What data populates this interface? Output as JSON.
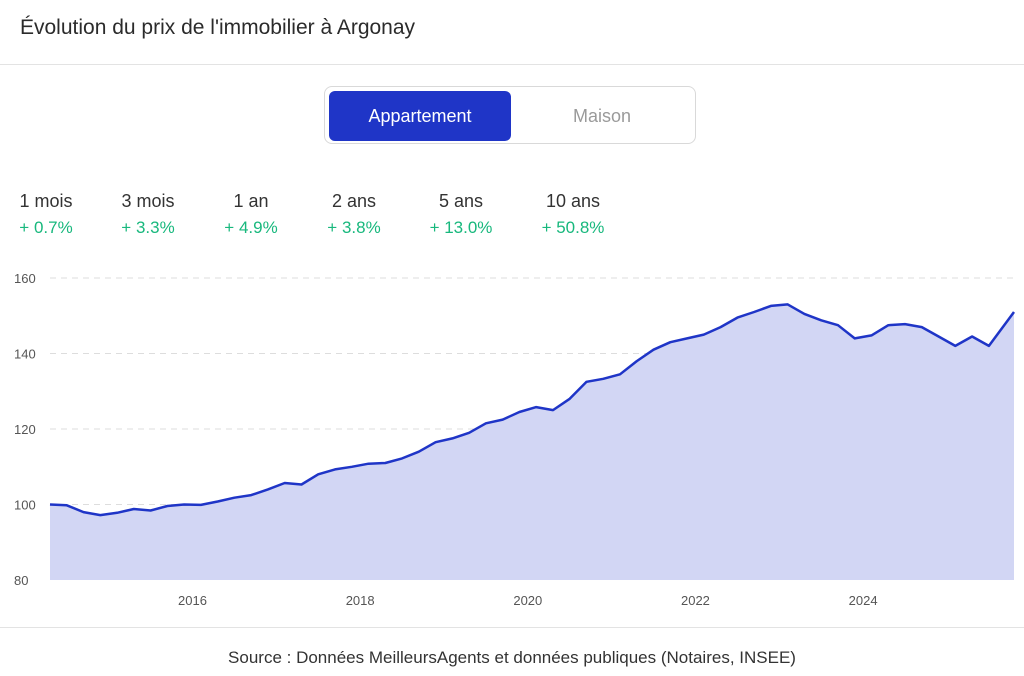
{
  "header": {
    "title": "Évolution du prix de l'immobilier à Argonay"
  },
  "toggle": {
    "options": [
      "Appartement",
      "Maison"
    ],
    "selected": "Appartement"
  },
  "stats": [
    {
      "period": "1 mois",
      "change": "+ 0.7%"
    },
    {
      "period": "3 mois",
      "change": "+ 3.3%"
    },
    {
      "period": "1 an",
      "change": "+ 4.9%"
    },
    {
      "period": "2 ans",
      "change": "+ 3.8%"
    },
    {
      "period": "5 ans",
      "change": "+ 13.0%"
    },
    {
      "period": "10 ans",
      "change": "+ 50.8%"
    }
  ],
  "colors": {
    "accent": "#1f35c7",
    "line": "#1f35c7",
    "area": "#d2d6f4",
    "positive": "#18b87d"
  },
  "chart_data": {
    "type": "area",
    "title": "",
    "xlabel": "",
    "ylabel": "",
    "ylim": [
      80,
      160
    ],
    "xlim": [
      2014.3,
      2025.8
    ],
    "yticks": [
      80,
      100,
      120,
      140,
      160
    ],
    "xticks": [
      2016,
      2018,
      2020,
      2022,
      2024
    ],
    "grid": true,
    "series": [
      {
        "x": [
          2014.3,
          2014.5,
          2014.7,
          2014.9,
          2015.1,
          2015.3,
          2015.5,
          2015.7,
          2015.9,
          2016.1,
          2016.3,
          2016.5,
          2016.7,
          2016.9,
          2017.1,
          2017.3,
          2017.5,
          2017.7,
          2017.9,
          2018.1,
          2018.3,
          2018.5,
          2018.7,
          2018.9,
          2019.1,
          2019.3,
          2019.5,
          2019.7,
          2019.9,
          2020.1,
          2020.3,
          2020.5,
          2020.7,
          2020.9,
          2021.1,
          2021.3,
          2021.5,
          2021.7,
          2021.9,
          2022.1,
          2022.3,
          2022.5,
          2022.7,
          2022.9,
          2023.1,
          2023.3,
          2023.5,
          2023.7,
          2023.9,
          2024.1,
          2024.3,
          2024.5,
          2024.7,
          2024.9,
          2025.1,
          2025.3,
          2025.5,
          2025.8
        ],
        "values": [
          100,
          99.8,
          98,
          97.2,
          97.8,
          98.8,
          98.4,
          99.6,
          100,
          99.9,
          100.8,
          101.8,
          102.5,
          104,
          105.7,
          105.3,
          108,
          109.3,
          110,
          110.8,
          111,
          112.2,
          114,
          116.5,
          117.5,
          119,
          121.5,
          122.5,
          124.5,
          125.8,
          125,
          128,
          132.5,
          133.3,
          134.5,
          138,
          141,
          143,
          144,
          145,
          147,
          149.5,
          151,
          152.6,
          153,
          150.5,
          148.8,
          147.5,
          144,
          144.8,
          147.5,
          147.8,
          147,
          144.5,
          142,
          144.5,
          142,
          151
        ]
      }
    ]
  },
  "footer": {
    "source": "Source : Données MeilleursAgents et données publiques (Notaires, INSEE)"
  }
}
